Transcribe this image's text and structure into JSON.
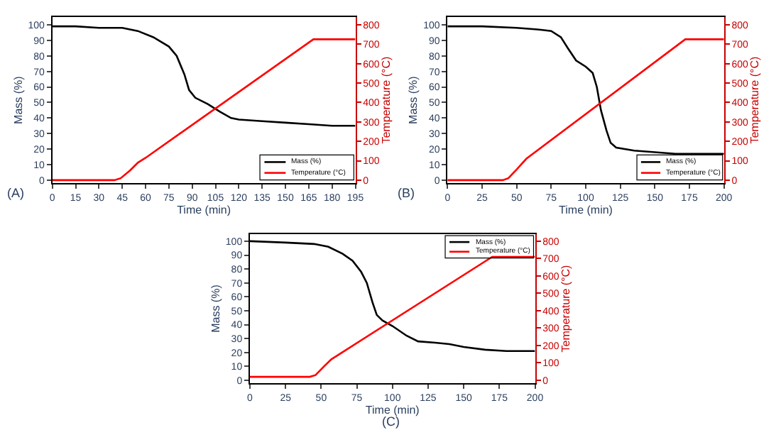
{
  "chart_data": [
    {
      "type": "line",
      "xlabel": "Time (min)",
      "ylabel": "Mass (%)",
      "y2label": "Temperature (°C)",
      "annotations": [
        "(A)"
      ],
      "legend": "bottom right",
      "xlim": [
        0,
        195
      ],
      "xticks": [
        0,
        15,
        30,
        45,
        60,
        75,
        90,
        105,
        120,
        135,
        150,
        165,
        180,
        195
      ],
      "ylim": [
        -2,
        105
      ],
      "yticks": [
        0,
        10,
        20,
        30,
        40,
        50,
        60,
        70,
        80,
        90,
        100
      ],
      "y2lim": [
        -16,
        840
      ],
      "y2ticks": [
        0,
        100,
        200,
        300,
        400,
        500,
        600,
        700,
        800
      ],
      "series": [
        {
          "name": "Mass (%)",
          "color": "#000000",
          "x": [
            0,
            15,
            30,
            45,
            55,
            65,
            75,
            80,
            85,
            88,
            92,
            100,
            108,
            115,
            120,
            135,
            150,
            165,
            180,
            195
          ],
          "values": [
            99,
            99,
            98,
            98,
            96,
            92,
            86,
            80,
            68,
            58,
            53,
            49,
            44,
            40,
            39,
            38,
            37,
            36,
            35,
            35
          ]
        },
        {
          "name": "Temperature (°C)",
          "color": "#ff0000",
          "axis": "y2",
          "x": [
            0,
            40,
            44,
            50,
            55,
            60,
            168,
            195
          ],
          "values": [
            0,
            0,
            10,
            50,
            90,
            115,
            725,
            725
          ]
        }
      ]
    },
    {
      "type": "line",
      "xlabel": "Time (min)",
      "ylabel": "Mass (%)",
      "y2label": "Temperature (°C)",
      "annotations": [
        "(B)"
      ],
      "legend": "bottom right",
      "xlim": [
        0,
        200
      ],
      "xticks": [
        0,
        25,
        50,
        75,
        100,
        125,
        150,
        175,
        200
      ],
      "ylim": [
        -2,
        105
      ],
      "yticks": [
        0,
        10,
        20,
        30,
        40,
        50,
        60,
        70,
        80,
        90,
        100
      ],
      "y2lim": [
        -16,
        840
      ],
      "y2ticks": [
        0,
        100,
        200,
        300,
        400,
        500,
        600,
        700,
        800
      ],
      "series": [
        {
          "name": "Mass (%)",
          "color": "#000000",
          "x": [
            0,
            25,
            50,
            65,
            75,
            82,
            87,
            93,
            100,
            105,
            108,
            111,
            115,
            118,
            122,
            135,
            150,
            165,
            200
          ],
          "values": [
            99,
            99,
            98,
            97,
            96,
            92,
            85,
            77,
            73,
            69,
            60,
            45,
            32,
            24,
            21,
            19,
            18,
            17,
            17
          ]
        },
        {
          "name": "Temperature (°C)",
          "color": "#ff0000",
          "axis": "y2",
          "x": [
            0,
            40,
            44,
            50,
            57,
            172,
            200
          ],
          "values": [
            0,
            0,
            10,
            55,
            110,
            725,
            725
          ]
        }
      ]
    },
    {
      "type": "line",
      "xlabel": "Time (min)",
      "ylabel": "Mass (%)",
      "y2label": "Temperature (°C)",
      "annotations": [
        "(C)"
      ],
      "legend": "top right",
      "xlim": [
        0,
        200
      ],
      "xticks": [
        0,
        25,
        50,
        75,
        100,
        125,
        150,
        175,
        200
      ],
      "ylim": [
        -2,
        105
      ],
      "yticks": [
        0,
        10,
        20,
        30,
        40,
        50,
        60,
        70,
        80,
        90,
        100
      ],
      "y2lim": [
        -16,
        840
      ],
      "y2ticks": [
        0,
        100,
        200,
        300,
        400,
        500,
        600,
        700,
        800
      ],
      "series": [
        {
          "name": "Mass (%)",
          "color": "#000000",
          "x": [
            0,
            25,
            45,
            55,
            65,
            72,
            78,
            82,
            86,
            89,
            93,
            100,
            110,
            118,
            130,
            140,
            150,
            165,
            180,
            200
          ],
          "values": [
            100,
            99,
            98,
            96,
            91,
            86,
            78,
            70,
            56,
            47,
            43,
            39,
            32,
            28,
            27,
            26,
            24,
            22,
            21,
            21
          ]
        },
        {
          "name": "Temperature (°C)",
          "color": "#ff0000",
          "axis": "y2",
          "x": [
            0,
            42,
            46,
            52,
            57,
            170,
            200
          ],
          "values": [
            20,
            20,
            30,
            80,
            120,
            710,
            710
          ]
        }
      ]
    }
  ]
}
